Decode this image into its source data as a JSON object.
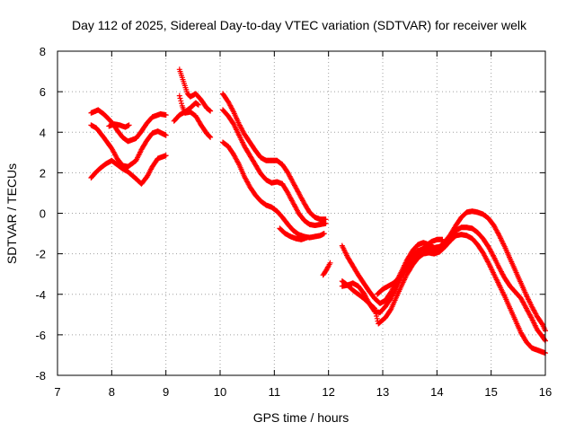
{
  "chart_data": {
    "type": "scatter",
    "title": "Day 112 of 2025, Sidereal Day-to-day VTEC variation (SDTVAR) for receiver welk",
    "xlabel": "GPS time / hours",
    "ylabel": "SDTVAR / TECUs",
    "xlim": [
      7,
      16
    ],
    "ylim": [
      -8,
      8
    ],
    "x_ticks": [
      7,
      8,
      9,
      10,
      11,
      12,
      13,
      14,
      15,
      16
    ],
    "y_ticks": [
      -8,
      -6,
      -4,
      -2,
      0,
      2,
      4,
      6,
      8
    ],
    "grid": true,
    "marker": "+",
    "color": "#ff0000",
    "series": [
      {
        "name": "track-1",
        "points": [
          [
            7.62,
            4.95
          ],
          [
            7.75,
            5.1
          ],
          [
            7.85,
            4.9
          ],
          [
            8.0,
            4.5
          ],
          [
            8.1,
            4.1
          ],
          [
            8.2,
            3.75
          ],
          [
            8.3,
            3.55
          ],
          [
            8.45,
            3.7
          ],
          [
            8.55,
            4.05
          ],
          [
            8.65,
            4.45
          ],
          [
            8.75,
            4.75
          ],
          [
            8.9,
            4.9
          ],
          [
            9.0,
            4.85
          ]
        ]
      },
      {
        "name": "track-2",
        "points": [
          [
            7.62,
            4.35
          ],
          [
            7.72,
            4.2
          ],
          [
            7.85,
            3.75
          ],
          [
            8.0,
            3.2
          ],
          [
            8.1,
            2.7
          ],
          [
            8.2,
            2.35
          ],
          [
            8.3,
            2.3
          ],
          [
            8.45,
            2.6
          ],
          [
            8.55,
            3.15
          ],
          [
            8.65,
            3.6
          ],
          [
            8.75,
            3.95
          ],
          [
            8.85,
            4.05
          ],
          [
            9.0,
            3.85
          ]
        ]
      },
      {
        "name": "track-3",
        "points": [
          [
            7.62,
            1.75
          ],
          [
            7.7,
            2.0
          ],
          [
            7.8,
            2.25
          ],
          [
            7.9,
            2.45
          ],
          [
            8.0,
            2.6
          ],
          [
            8.1,
            2.4
          ],
          [
            8.2,
            2.2
          ],
          [
            8.3,
            2.05
          ],
          [
            8.45,
            1.7
          ],
          [
            8.55,
            1.45
          ],
          [
            8.65,
            1.8
          ],
          [
            8.75,
            2.3
          ],
          [
            8.85,
            2.7
          ],
          [
            9.0,
            2.85
          ]
        ]
      },
      {
        "name": "track-4",
        "points": [
          [
            7.95,
            4.3
          ],
          [
            8.05,
            4.4
          ],
          [
            8.15,
            4.35
          ],
          [
            8.25,
            4.25
          ],
          [
            8.32,
            4.35
          ]
        ]
      },
      {
        "name": "track-5",
        "points": [
          [
            9.25,
            7.1
          ],
          [
            9.3,
            6.7
          ],
          [
            9.35,
            6.3
          ],
          [
            9.4,
            5.9
          ],
          [
            9.45,
            5.75
          ],
          [
            9.55,
            5.9
          ],
          [
            9.65,
            5.6
          ],
          [
            9.75,
            5.2
          ],
          [
            9.82,
            5.05
          ]
        ]
      },
      {
        "name": "track-6",
        "points": [
          [
            9.25,
            5.8
          ],
          [
            9.3,
            5.3
          ],
          [
            9.35,
            4.95
          ],
          [
            9.45,
            5.0
          ],
          [
            9.55,
            4.8
          ],
          [
            9.65,
            4.35
          ],
          [
            9.75,
            3.95
          ],
          [
            9.82,
            3.75
          ]
        ]
      },
      {
        "name": "track-7",
        "points": [
          [
            9.15,
            4.55
          ],
          [
            9.25,
            4.85
          ],
          [
            9.35,
            5.0
          ],
          [
            9.45,
            5.2
          ],
          [
            9.55,
            5.45
          ],
          [
            9.6,
            5.35
          ]
        ]
      },
      {
        "name": "track-8",
        "points": [
          [
            10.05,
            5.9
          ],
          [
            10.15,
            5.5
          ],
          [
            10.25,
            5.0
          ],
          [
            10.35,
            4.4
          ],
          [
            10.45,
            3.9
          ],
          [
            10.55,
            3.5
          ],
          [
            10.65,
            3.1
          ],
          [
            10.75,
            2.75
          ],
          [
            10.85,
            2.6
          ],
          [
            10.95,
            2.6
          ],
          [
            11.05,
            2.6
          ],
          [
            11.15,
            2.4
          ],
          [
            11.25,
            2.0
          ],
          [
            11.35,
            1.5
          ],
          [
            11.45,
            1.0
          ],
          [
            11.55,
            0.5
          ],
          [
            11.65,
            0.05
          ],
          [
            11.75,
            -0.2
          ],
          [
            11.85,
            -0.3
          ],
          [
            11.95,
            -0.3
          ]
        ]
      },
      {
        "name": "track-9",
        "points": [
          [
            10.05,
            5.1
          ],
          [
            10.15,
            4.8
          ],
          [
            10.25,
            4.4
          ],
          [
            10.35,
            3.85
          ],
          [
            10.45,
            3.3
          ],
          [
            10.55,
            2.85
          ],
          [
            10.65,
            2.4
          ],
          [
            10.75,
            1.95
          ],
          [
            10.85,
            1.65
          ],
          [
            10.95,
            1.5
          ],
          [
            11.05,
            1.55
          ],
          [
            11.15,
            1.45
          ],
          [
            11.25,
            1.0
          ],
          [
            11.35,
            0.5
          ],
          [
            11.45,
            0.0
          ],
          [
            11.55,
            -0.35
          ],
          [
            11.65,
            -0.55
          ],
          [
            11.75,
            -0.6
          ],
          [
            11.85,
            -0.55
          ],
          [
            11.95,
            -0.5
          ]
        ]
      },
      {
        "name": "track-10",
        "points": [
          [
            10.05,
            3.5
          ],
          [
            10.15,
            3.3
          ],
          [
            10.25,
            2.9
          ],
          [
            10.35,
            2.4
          ],
          [
            10.45,
            1.8
          ],
          [
            10.55,
            1.3
          ],
          [
            10.65,
            0.9
          ],
          [
            10.75,
            0.6
          ],
          [
            10.85,
            0.4
          ],
          [
            10.95,
            0.3
          ],
          [
            11.05,
            0.1
          ],
          [
            11.15,
            -0.2
          ],
          [
            11.25,
            -0.55
          ],
          [
            11.35,
            -0.85
          ],
          [
            11.45,
            -1.05
          ],
          [
            11.55,
            -1.15
          ],
          [
            11.65,
            -1.2
          ],
          [
            11.75,
            -1.15
          ],
          [
            11.85,
            -1.1
          ],
          [
            11.92,
            -1.0
          ]
        ]
      },
      {
        "name": "track-11",
        "points": [
          [
            11.1,
            -0.75
          ],
          [
            11.2,
            -1.0
          ],
          [
            11.3,
            -1.15
          ],
          [
            11.4,
            -1.25
          ],
          [
            11.5,
            -1.3
          ],
          [
            11.6,
            -1.2
          ]
        ]
      },
      {
        "name": "track-12",
        "points": [
          [
            11.9,
            -3.05
          ],
          [
            11.95,
            -2.85
          ],
          [
            12.0,
            -2.6
          ],
          [
            12.03,
            -2.45
          ]
        ]
      },
      {
        "name": "track-13",
        "points": [
          [
            12.25,
            -1.6
          ],
          [
            12.35,
            -2.15
          ],
          [
            12.45,
            -2.6
          ],
          [
            12.55,
            -3.05
          ],
          [
            12.65,
            -3.45
          ],
          [
            12.75,
            -3.85
          ],
          [
            12.85,
            -4.2
          ],
          [
            12.95,
            -4.45
          ],
          [
            13.05,
            -4.3
          ],
          [
            13.15,
            -3.9
          ],
          [
            13.25,
            -3.4
          ],
          [
            13.35,
            -2.85
          ],
          [
            13.45,
            -2.3
          ],
          [
            13.55,
            -1.85
          ],
          [
            13.65,
            -1.55
          ],
          [
            13.75,
            -1.45
          ],
          [
            13.85,
            -1.55
          ],
          [
            13.95,
            -1.7
          ],
          [
            14.05,
            -1.65
          ],
          [
            14.15,
            -1.4
          ],
          [
            14.25,
            -1.05
          ],
          [
            14.35,
            -0.6
          ],
          [
            14.45,
            -0.2
          ],
          [
            14.55,
            0.05
          ],
          [
            14.65,
            0.1
          ],
          [
            14.75,
            0.05
          ],
          [
            14.85,
            -0.05
          ],
          [
            14.95,
            -0.25
          ],
          [
            15.05,
            -0.6
          ],
          [
            15.15,
            -1.1
          ],
          [
            15.25,
            -1.65
          ],
          [
            15.35,
            -2.25
          ],
          [
            15.45,
            -2.85
          ],
          [
            15.55,
            -3.45
          ],
          [
            15.65,
            -4.05
          ],
          [
            15.75,
            -4.6
          ],
          [
            15.85,
            -5.1
          ],
          [
            15.95,
            -5.5
          ],
          [
            16.0,
            -5.8
          ]
        ]
      },
      {
        "name": "track-14",
        "points": [
          [
            12.25,
            -3.6
          ],
          [
            12.35,
            -3.55
          ],
          [
            12.45,
            -3.45
          ],
          [
            12.55,
            -3.6
          ],
          [
            12.65,
            -3.95
          ],
          [
            12.75,
            -4.45
          ],
          [
            12.85,
            -4.85
          ],
          [
            12.95,
            -4.9
          ],
          [
            13.05,
            -4.6
          ],
          [
            13.15,
            -4.2
          ],
          [
            13.25,
            -3.7
          ],
          [
            13.35,
            -3.1
          ],
          [
            13.45,
            -2.55
          ],
          [
            13.55,
            -2.1
          ],
          [
            13.65,
            -1.85
          ],
          [
            13.75,
            -1.75
          ],
          [
            13.85,
            -1.8
          ],
          [
            13.95,
            -1.85
          ],
          [
            14.05,
            -1.75
          ],
          [
            14.15,
            -1.5
          ],
          [
            14.25,
            -1.15
          ],
          [
            14.35,
            -0.85
          ],
          [
            14.45,
            -0.7
          ],
          [
            14.55,
            -0.7
          ],
          [
            14.65,
            -0.75
          ],
          [
            14.75,
            -0.95
          ],
          [
            14.85,
            -1.25
          ],
          [
            14.95,
            -1.65
          ],
          [
            15.05,
            -2.15
          ],
          [
            15.15,
            -2.7
          ],
          [
            15.25,
            -3.2
          ],
          [
            15.35,
            -3.6
          ],
          [
            15.45,
            -3.9
          ],
          [
            15.55,
            -4.2
          ],
          [
            15.65,
            -4.7
          ],
          [
            15.75,
            -5.2
          ],
          [
            15.85,
            -5.75
          ],
          [
            15.95,
            -6.1
          ],
          [
            16.0,
            -6.3
          ]
        ]
      },
      {
        "name": "track-15",
        "points": [
          [
            12.25,
            -3.35
          ],
          [
            12.35,
            -3.55
          ],
          [
            12.45,
            -3.8
          ],
          [
            12.55,
            -4.0
          ],
          [
            12.65,
            -4.2
          ],
          [
            12.75,
            -4.45
          ],
          [
            12.85,
            -4.7
          ],
          [
            12.92,
            -5.45
          ],
          [
            13.05,
            -5.15
          ],
          [
            13.15,
            -4.75
          ],
          [
            13.25,
            -4.15
          ],
          [
            13.35,
            -3.55
          ],
          [
            13.45,
            -3.0
          ],
          [
            13.55,
            -2.55
          ],
          [
            13.65,
            -2.2
          ],
          [
            13.75,
            -2.0
          ],
          [
            13.85,
            -1.95
          ],
          [
            13.95,
            -2.0
          ],
          [
            14.05,
            -1.9
          ],
          [
            14.15,
            -1.65
          ],
          [
            14.25,
            -1.35
          ],
          [
            14.35,
            -1.1
          ],
          [
            14.45,
            -1.05
          ],
          [
            14.55,
            -1.1
          ],
          [
            14.65,
            -1.25
          ],
          [
            14.75,
            -1.55
          ],
          [
            14.85,
            -1.95
          ],
          [
            14.95,
            -2.45
          ],
          [
            15.05,
            -3.0
          ],
          [
            15.15,
            -3.55
          ],
          [
            15.25,
            -4.1
          ],
          [
            15.35,
            -4.7
          ],
          [
            15.45,
            -5.3
          ],
          [
            15.55,
            -5.9
          ],
          [
            15.65,
            -6.35
          ],
          [
            15.75,
            -6.65
          ],
          [
            15.85,
            -6.75
          ],
          [
            15.95,
            -6.85
          ],
          [
            16.0,
            -6.9
          ]
        ]
      },
      {
        "name": "track-16",
        "points": [
          [
            12.9,
            -4.0
          ],
          [
            13.0,
            -3.75
          ],
          [
            13.1,
            -3.6
          ],
          [
            13.2,
            -3.45
          ],
          [
            13.3,
            -3.2
          ],
          [
            13.4,
            -2.85
          ],
          [
            13.5,
            -2.5
          ],
          [
            13.6,
            -2.2
          ],
          [
            13.7,
            -1.85
          ],
          [
            13.8,
            -1.6
          ],
          [
            13.9,
            -1.4
          ],
          [
            14.0,
            -1.3
          ],
          [
            14.1,
            -1.3
          ]
        ]
      }
    ]
  }
}
